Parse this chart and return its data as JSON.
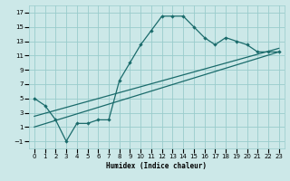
{
  "xlabel": "Humidex (Indice chaleur)",
  "bg_color": "#cce8e8",
  "grid_color": "#99cccc",
  "line_color": "#1a6b6b",
  "xlim": [
    -0.5,
    23.5
  ],
  "ylim": [
    -2.0,
    18.0
  ],
  "xticks": [
    0,
    1,
    2,
    3,
    4,
    5,
    6,
    7,
    8,
    9,
    10,
    11,
    12,
    13,
    14,
    15,
    16,
    17,
    18,
    19,
    20,
    21,
    22,
    23
  ],
  "yticks": [
    -1,
    1,
    3,
    5,
    7,
    9,
    11,
    13,
    15,
    17
  ],
  "line1_x": [
    0,
    1,
    2,
    3,
    4,
    5,
    6,
    7,
    8,
    9,
    10,
    11,
    12,
    13,
    14,
    15,
    16,
    17,
    18,
    19,
    20,
    21,
    22,
    23
  ],
  "line1_y": [
    5.0,
    4.0,
    2.0,
    -1.0,
    1.5,
    1.5,
    2.0,
    2.0,
    7.5,
    10.0,
    12.5,
    14.5,
    16.5,
    16.5,
    16.5,
    15.0,
    13.5,
    12.5,
    13.5,
    13.0,
    12.5,
    11.5,
    11.5,
    11.5
  ],
  "line2_x": [
    0,
    23
  ],
  "line2_y": [
    2.5,
    12.0
  ],
  "line3_x": [
    0,
    23
  ],
  "line3_y": [
    1.0,
    11.5
  ]
}
